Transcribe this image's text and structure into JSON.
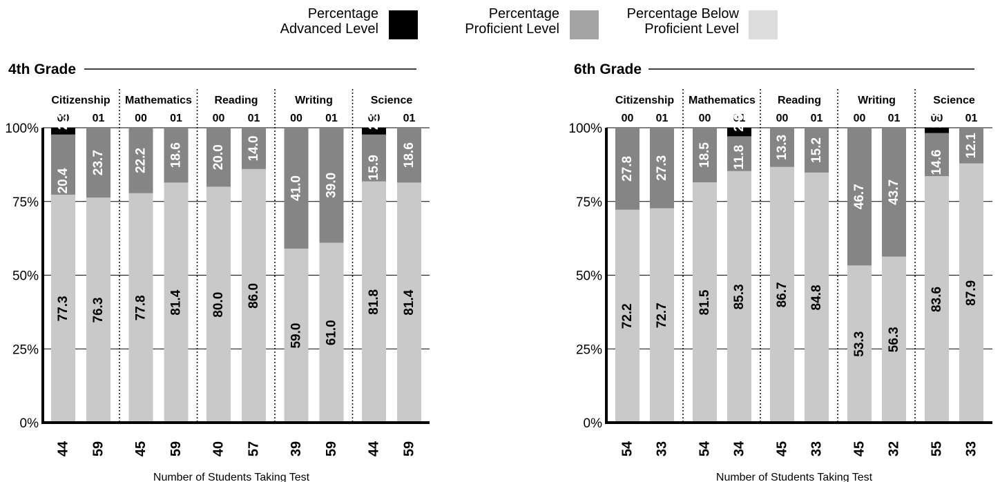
{
  "legend": {
    "advanced": {
      "line1": "Percentage",
      "line2": "Advanced Level",
      "color": "#000000"
    },
    "proficient": {
      "line1": "Percentage",
      "line2": "Proficient Level",
      "color": "#a3a3a3"
    },
    "below": {
      "line1": "Percentage Below",
      "line2": "Proficient Level",
      "color": "#dcdcdc"
    }
  },
  "colors": {
    "advanced": "#000000",
    "proficient": "#858585",
    "below": "#c9c9c9",
    "label_light": "#ffffff",
    "label_dark": "#000000"
  },
  "chart_data": [
    {
      "type": "bar",
      "title": "4th Grade",
      "xlabel": "Number of Students Taking Test",
      "ylim": [
        0,
        100
      ],
      "yticks": [
        "0%",
        "25%",
        "50%",
        "75%",
        "100%"
      ],
      "grid": true,
      "subjects": [
        "Citizenship",
        "Mathematics",
        "Reading",
        "Writing",
        "Science"
      ],
      "years": [
        "00",
        "01"
      ],
      "series": [
        {
          "name": "Percentage Below Proficient Level",
          "values": [
            [
              77.3,
              76.3
            ],
            [
              77.8,
              81.4
            ],
            [
              80.0,
              86.0
            ],
            [
              59.0,
              61.0
            ],
            [
              81.8,
              81.4
            ]
          ],
          "labels": [
            [
              "77.3",
              "76.3"
            ],
            [
              "77.8",
              "81.4"
            ],
            [
              "80.0",
              "86.0"
            ],
            [
              "59.0",
              "61.0"
            ],
            [
              "81.8",
              "81.4"
            ]
          ]
        },
        {
          "name": "Percentage Proficient Level",
          "values": [
            [
              20.4,
              23.7
            ],
            [
              22.2,
              18.6
            ],
            [
              20.0,
              14.0
            ],
            [
              41.0,
              39.0
            ],
            [
              15.9,
              18.6
            ]
          ],
          "labels": [
            [
              "20.4",
              "23.7"
            ],
            [
              "22.2",
              "18.6"
            ],
            [
              "20.0",
              "14.0"
            ],
            [
              "41.0",
              "39.0"
            ],
            [
              "15.9",
              "18.6"
            ]
          ]
        },
        {
          "name": "Percentage Advanced Level",
          "values": [
            [
              2.3,
              0
            ],
            [
              0,
              0
            ],
            [
              0,
              0
            ],
            [
              0,
              0
            ],
            [
              2.3,
              0
            ]
          ],
          "labels": [
            [
              "2.3",
              ""
            ],
            [
              "",
              ""
            ],
            [
              "",
              ""
            ],
            [
              "",
              ""
            ],
            [
              "2.3",
              ""
            ]
          ]
        }
      ],
      "students": [
        [
          "44",
          "59"
        ],
        [
          "45",
          "59"
        ],
        [
          "40",
          "57"
        ],
        [
          "39",
          "59"
        ],
        [
          "44",
          "59"
        ]
      ]
    },
    {
      "type": "bar",
      "title": "6th Grade",
      "xlabel": "Number of Students Taking Test",
      "ylim": [
        0,
        100
      ],
      "yticks": [
        "0%",
        "25%",
        "50%",
        "75%",
        "100%"
      ],
      "grid": true,
      "subjects": [
        "Citizenship",
        "Mathematics",
        "Reading",
        "Writing",
        "Science"
      ],
      "years": [
        "00",
        "01"
      ],
      "series": [
        {
          "name": "Percentage Below Proficient Level",
          "values": [
            [
              72.2,
              72.7
            ],
            [
              81.5,
              85.3
            ],
            [
              86.7,
              84.8
            ],
            [
              53.3,
              56.3
            ],
            [
              83.6,
              87.9
            ]
          ],
          "labels": [
            [
              "72.2",
              "72.7"
            ],
            [
              "81.5",
              "85.3"
            ],
            [
              "86.7",
              "84.8"
            ],
            [
              "53.3",
              "56.3"
            ],
            [
              "83.6",
              "87.9"
            ]
          ]
        },
        {
          "name": "Percentage Proficient Level",
          "values": [
            [
              27.8,
              27.3
            ],
            [
              18.5,
              11.8
            ],
            [
              13.3,
              15.2
            ],
            [
              46.7,
              43.7
            ],
            [
              14.6,
              12.1
            ]
          ],
          "labels": [
            [
              "27.8",
              "27.3"
            ],
            [
              "18.5",
              "11.8"
            ],
            [
              "13.3",
              "15.2"
            ],
            [
              "46.7",
              "43.7"
            ],
            [
              "14.6",
              "12.1"
            ]
          ]
        },
        {
          "name": "Percentage Advanced Level",
          "values": [
            [
              0,
              0
            ],
            [
              0,
              2.9
            ],
            [
              0,
              0
            ],
            [
              0,
              0
            ],
            [
              1.8,
              0
            ]
          ],
          "labels": [
            [
              "",
              ""
            ],
            [
              "",
              "2.9"
            ],
            [
              "",
              ""
            ],
            [
              "",
              ""
            ],
            [
              "1.8",
              ""
            ]
          ]
        }
      ],
      "students": [
        [
          "54",
          "33"
        ],
        [
          "54",
          "34"
        ],
        [
          "45",
          "33"
        ],
        [
          "45",
          "32"
        ],
        [
          "55",
          "33"
        ]
      ]
    }
  ]
}
